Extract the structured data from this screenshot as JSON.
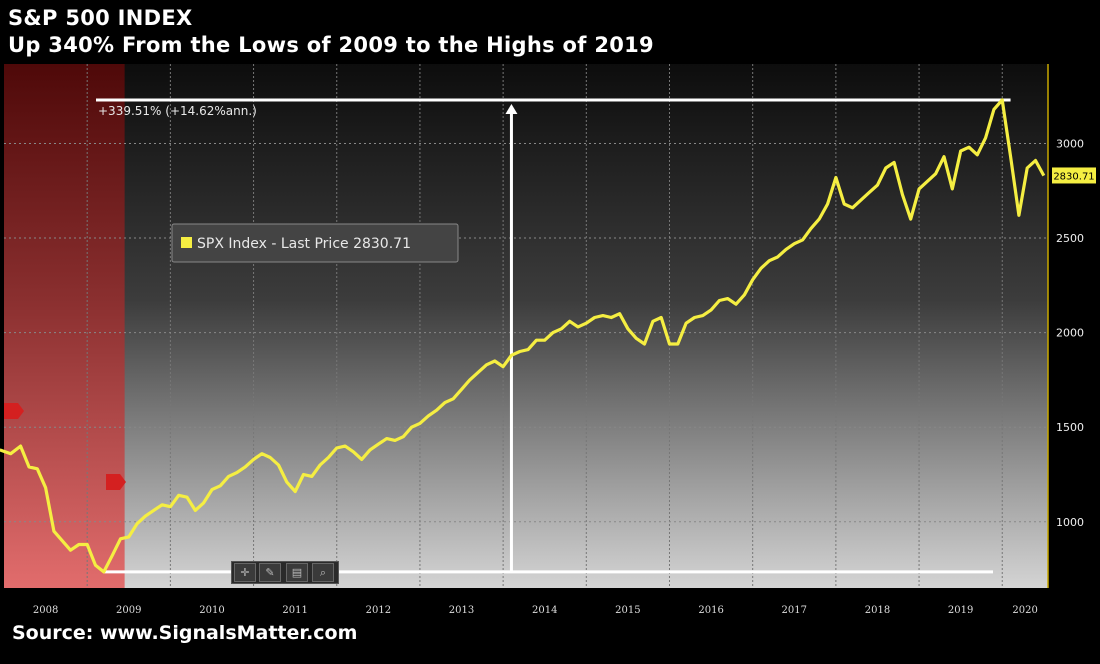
{
  "title": "S&P 500 INDEX",
  "subtitle": "Up 340% From the Lows of 2009 to the Highs of 2019",
  "source": "Source: www.SignalsMatter.com",
  "colors": {
    "line": "#f5ee42",
    "background_top": "#0d0d0d",
    "background_bottom": "#cfcfcf",
    "recession_shade": "#b81a1a",
    "annotation": "#ffffff"
  },
  "toolbar": {
    "icons": [
      "crosshair-icon",
      "pencil-icon",
      "table-icon",
      "zoom-icon"
    ]
  },
  "chart_data": {
    "type": "line",
    "xlabel": "",
    "ylabel": "",
    "x_tick_labels": [
      "2008",
      "2009",
      "2010",
      "2011",
      "2012",
      "2013",
      "2014",
      "2015",
      "2016",
      "2017",
      "2018",
      "2019",
      "2020"
    ],
    "y_tick_labels": [
      "1000",
      "1500",
      "2000",
      "2500",
      "3000"
    ],
    "ylim": [
      650,
      3420
    ],
    "xlim": [
      2008.0,
      2020.55
    ],
    "grid": true,
    "legend": {
      "label": "SPX Index - Last Price 2830.71",
      "placement": "upper-left"
    },
    "last_price_label": "2830.71",
    "recession_shade": {
      "start": 2008.0,
      "end": 2009.45
    },
    "annotation": {
      "text": "+339.51% (+14.62%ann.)",
      "low": 735,
      "high": 3230,
      "low_date": 2009.2,
      "high_date": 2020.1
    },
    "series": [
      {
        "name": "SPX Index - Last Price",
        "x": [
          2007.95,
          2008.08,
          2008.2,
          2008.3,
          2008.4,
          2008.5,
          2008.6,
          2008.7,
          2008.8,
          2008.9,
          2009.0,
          2009.1,
          2009.2,
          2009.3,
          2009.4,
          2009.5,
          2009.6,
          2009.7,
          2009.8,
          2009.9,
          2010.0,
          2010.1,
          2010.2,
          2010.3,
          2010.4,
          2010.5,
          2010.6,
          2010.7,
          2010.8,
          2010.9,
          2011.0,
          2011.1,
          2011.2,
          2011.3,
          2011.4,
          2011.5,
          2011.6,
          2011.7,
          2011.8,
          2011.9,
          2012.0,
          2012.1,
          2012.2,
          2012.3,
          2012.4,
          2012.5,
          2012.6,
          2012.7,
          2012.8,
          2012.9,
          2013.0,
          2013.1,
          2013.2,
          2013.3,
          2013.4,
          2013.5,
          2013.6,
          2013.7,
          2013.8,
          2013.9,
          2014.0,
          2014.1,
          2014.2,
          2014.3,
          2014.4,
          2014.5,
          2014.6,
          2014.7,
          2014.8,
          2014.9,
          2015.0,
          2015.1,
          2015.2,
          2015.3,
          2015.4,
          2015.5,
          2015.6,
          2015.7,
          2015.8,
          2015.9,
          2016.0,
          2016.1,
          2016.2,
          2016.3,
          2016.4,
          2016.5,
          2016.6,
          2016.7,
          2016.8,
          2016.9,
          2017.0,
          2017.1,
          2017.2,
          2017.3,
          2017.4,
          2017.5,
          2017.6,
          2017.7,
          2017.8,
          2017.9,
          2018.0,
          2018.1,
          2018.2,
          2018.3,
          2018.4,
          2018.5,
          2018.6,
          2018.7,
          2018.8,
          2018.9,
          2019.0,
          2019.1,
          2019.2,
          2019.3,
          2019.4,
          2019.5,
          2019.6,
          2019.7,
          2019.8,
          2019.9,
          2020.0,
          2020.1,
          2020.2,
          2020.3,
          2020.4,
          2020.5
        ],
        "y": [
          1380,
          1360,
          1400,
          1290,
          1280,
          1180,
          950,
          900,
          850,
          880,
          880,
          770,
          735,
          820,
          910,
          920,
          990,
          1030,
          1060,
          1090,
          1080,
          1140,
          1130,
          1060,
          1100,
          1170,
          1190,
          1240,
          1260,
          1290,
          1330,
          1360,
          1340,
          1300,
          1210,
          1160,
          1250,
          1240,
          1300,
          1340,
          1390,
          1400,
          1370,
          1330,
          1380,
          1410,
          1440,
          1430,
          1450,
          1500,
          1520,
          1560,
          1590,
          1630,
          1650,
          1700,
          1750,
          1790,
          1830,
          1850,
          1820,
          1880,
          1900,
          1910,
          1960,
          1960,
          2000,
          2020,
          2060,
          2030,
          2050,
          2080,
          2090,
          2080,
          2100,
          2020,
          1970,
          1940,
          2060,
          2080,
          1940,
          1940,
          2050,
          2080,
          2090,
          2120,
          2170,
          2180,
          2150,
          2200,
          2280,
          2340,
          2380,
          2400,
          2440,
          2470,
          2490,
          2550,
          2600,
          2680,
          2820,
          2680,
          2660,
          2700,
          2740,
          2780,
          2870,
          2900,
          2730,
          2600,
          2760,
          2800,
          2840,
          2930,
          2760,
          2960,
          2980,
          2940,
          3030,
          3180,
          3230,
          2930,
          2620,
          2870,
          2910,
          2830
        ]
      }
    ]
  }
}
